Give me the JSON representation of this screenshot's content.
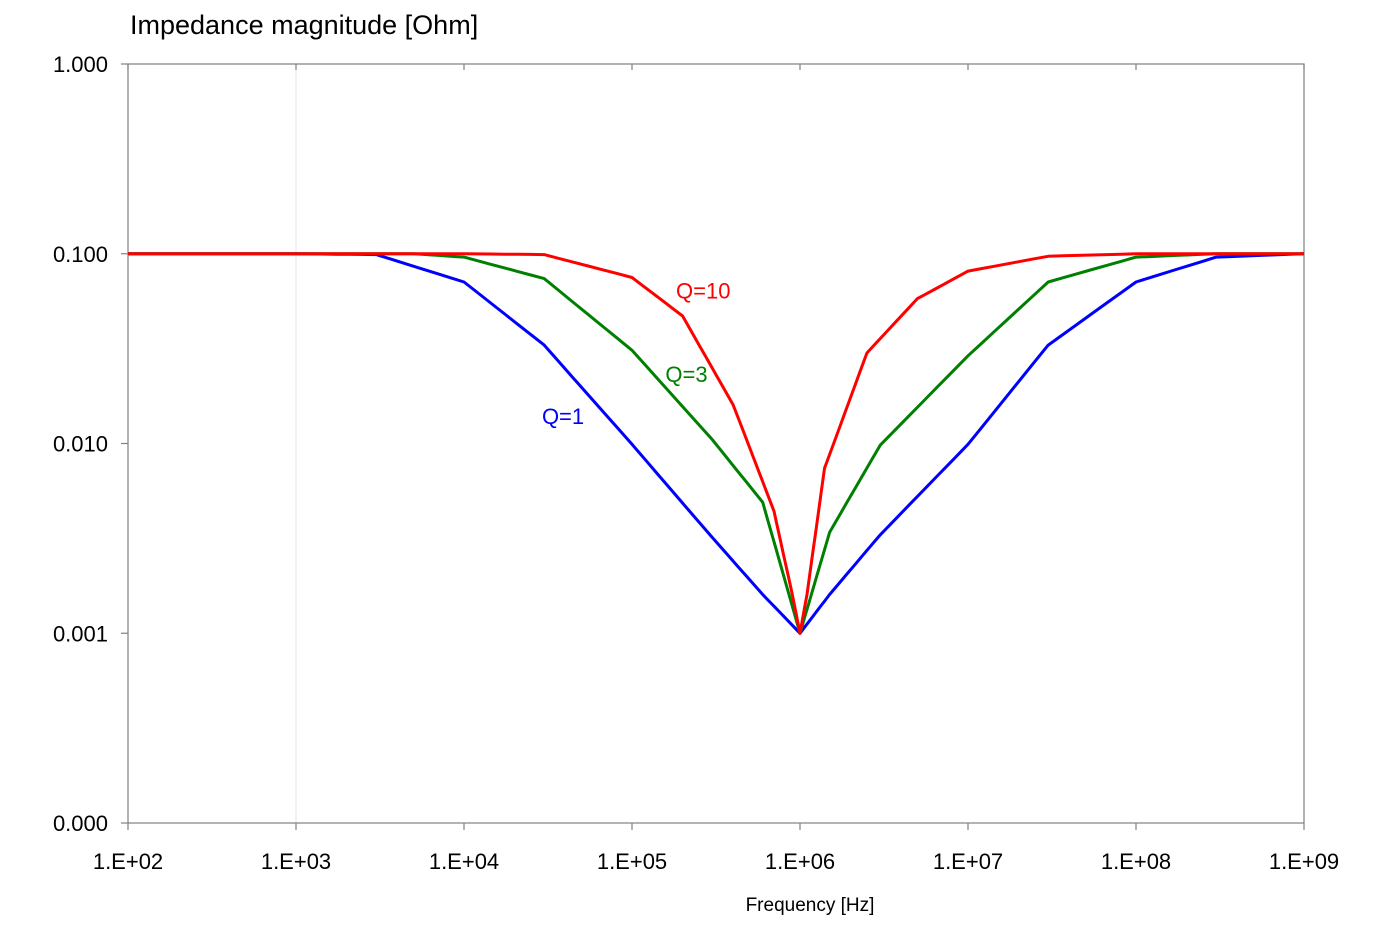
{
  "chart_data": {
    "type": "line",
    "title": "Impedance magnitude [Ohm]",
    "xlabel": "Frequency [Hz]",
    "ylabel": "",
    "x_scale": "log",
    "y_scale": "log",
    "xlim": [
      100,
      1000000000
    ],
    "ylim": [
      0.0001,
      1
    ],
    "x_tick_values": [
      100,
      1000,
      10000,
      100000,
      1000000,
      10000000,
      100000000,
      1000000000
    ],
    "x_tick_labels": [
      "1.E+02",
      "1.E+03",
      "1.E+04",
      "1.E+05",
      "1.E+06",
      "1.E+07",
      "1.E+08",
      "1.E+09"
    ],
    "y_tick_values": [
      0.0001,
      0.001,
      0.01,
      0.1,
      1
    ],
    "y_tick_labels": [
      "0.000",
      "0.001",
      "0.010",
      "0.100",
      "1.000"
    ],
    "grid": false,
    "resonant_frequency": 1000000,
    "series": [
      {
        "name": "Q=1",
        "color": "#0000ff",
        "x": [
          100,
          1000,
          3000,
          10000,
          30000,
          100000,
          300000,
          600000,
          1000000,
          1500000,
          3000000,
          10000000,
          30000000,
          100000000,
          300000000,
          1000000000
        ],
        "values": [
          0.1,
          0.1,
          0.099,
          0.071,
          0.033,
          0.0099,
          0.0032,
          0.0016,
          0.001,
          0.0016,
          0.0033,
          0.0099,
          0.033,
          0.071,
          0.096,
          0.1
        ]
      },
      {
        "name": "Q=3",
        "color": "#008000",
        "x": [
          100,
          1000,
          5000,
          10000,
          30000,
          100000,
          300000,
          600000,
          1000000,
          1500000,
          3000000,
          10000000,
          30000000,
          100000000,
          300000000,
          1000000000
        ],
        "values": [
          0.1,
          0.1,
          0.1,
          0.096,
          0.074,
          0.031,
          0.0105,
          0.0049,
          0.001,
          0.0034,
          0.0098,
          0.029,
          0.071,
          0.096,
          0.1,
          0.1
        ]
      },
      {
        "name": "Q=10",
        "color": "#ff0000",
        "x": [
          100,
          1000,
          10000,
          30000,
          100000,
          200000,
          400000,
          700000,
          900000,
          1000000,
          1100000,
          1400000,
          2500000,
          5000000,
          10000000,
          30000000,
          100000000,
          1000000000
        ],
        "values": [
          0.1,
          0.1,
          0.1,
          0.099,
          0.075,
          0.047,
          0.016,
          0.0044,
          0.0016,
          0.001,
          0.0016,
          0.0074,
          0.03,
          0.058,
          0.081,
          0.097,
          0.1,
          0.1
        ]
      }
    ]
  }
}
